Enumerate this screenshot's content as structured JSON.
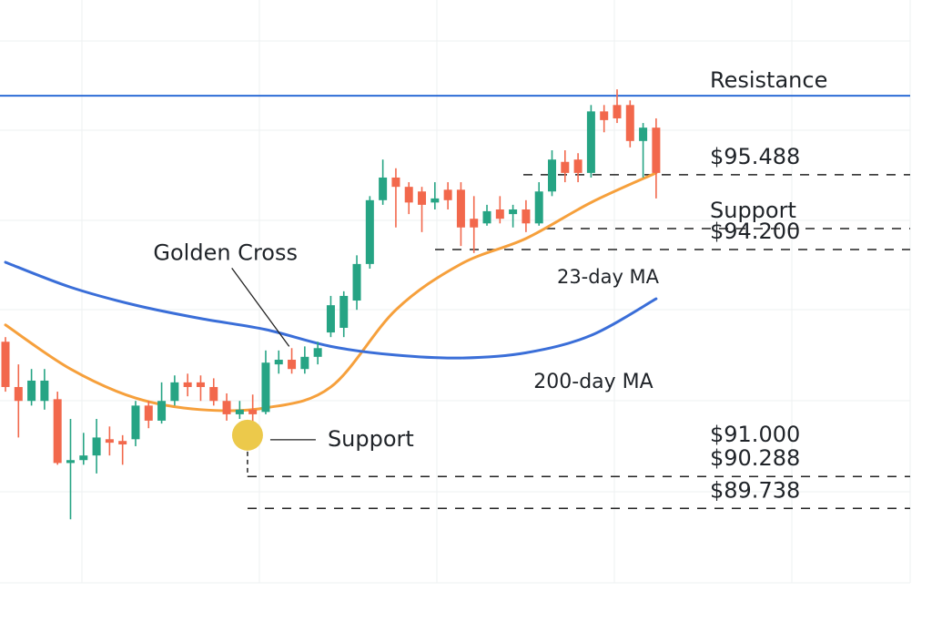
{
  "chart_data": {
    "type": "candlestick",
    "up_color": "#26a484",
    "down_color": "#f2684c",
    "xlim": [
      -0.42,
      71.2
    ],
    "ylim": [
      87.78,
      98.5
    ],
    "open": [
      92.61,
      91.83,
      91.59,
      91.59,
      91.62,
      90.52,
      90.57,
      90.65,
      90.93,
      90.9,
      90.93,
      91.51,
      91.25,
      91.59,
      91.91,
      91.91,
      91.83,
      91.59,
      91.36,
      91.44,
      91.4,
      92.22,
      92.3,
      92.14,
      92.35,
      92.77,
      92.85,
      93.32,
      93.95,
      95.05,
      95.44,
      95.28,
      95.2,
      95.01,
      95.23,
      95.23,
      94.73,
      94.65,
      94.89,
      94.81,
      94.89,
      94.65,
      95.2,
      95.71,
      95.75,
      95.52,
      96.58,
      96.69,
      96.69,
      96.07,
      96.3
    ],
    "high": [
      92.69,
      92.22,
      92.14,
      92.14,
      91.75,
      91.28,
      91.04,
      91.28,
      91.15,
      91.0,
      91.59,
      91.59,
      91.91,
      92.03,
      92.06,
      92.03,
      91.98,
      91.72,
      91.59,
      91.7,
      92.46,
      92.46,
      92.5,
      92.53,
      92.61,
      93.4,
      93.48,
      94.1,
      95.12,
      95.75,
      95.6,
      95.36,
      95.28,
      95.36,
      95.36,
      95.36,
      95.12,
      94.97,
      95.12,
      94.97,
      95.05,
      95.36,
      95.91,
      95.91,
      95.86,
      96.69,
      96.69,
      96.96,
      96.77,
      96.38,
      96.46
    ],
    "low": [
      91.75,
      90.96,
      91.51,
      91.44,
      90.49,
      89.55,
      90.49,
      90.34,
      90.65,
      90.49,
      90.81,
      91.12,
      91.2,
      91.51,
      91.67,
      91.59,
      91.51,
      91.25,
      91.28,
      91.12,
      91.36,
      92.06,
      92.06,
      92.06,
      92.22,
      92.69,
      92.69,
      93.16,
      93.87,
      94.97,
      94.58,
      94.81,
      94.5,
      94.89,
      94.89,
      94.26,
      94.14,
      94.61,
      94.65,
      94.58,
      94.5,
      94.61,
      95.12,
      95.36,
      95.36,
      95.44,
      96.22,
      96.38,
      95.96,
      95.44,
      95.08
    ],
    "close": [
      91.83,
      91.59,
      91.94,
      91.94,
      90.52,
      90.57,
      90.65,
      90.96,
      90.87,
      90.84,
      91.51,
      91.25,
      91.59,
      91.91,
      91.83,
      91.83,
      91.59,
      91.36,
      91.44,
      91.36,
      92.25,
      92.3,
      92.14,
      92.35,
      92.5,
      93.24,
      93.4,
      93.95,
      95.05,
      95.44,
      95.28,
      95.01,
      94.97,
      95.08,
      95.05,
      94.58,
      94.58,
      94.86,
      94.73,
      94.89,
      94.65,
      95.2,
      95.75,
      95.52,
      95.52,
      96.58,
      96.43,
      96.46,
      96.07,
      96.3,
      95.52
    ],
    "series": [
      {
        "name": "23-day MA",
        "color": "#f6a03c",
        "x": [
          0,
          5,
          10,
          15,
          20,
          25,
          30,
          35,
          40,
          45,
          50
        ],
        "values": [
          92.9,
          92.14,
          91.64,
          91.44,
          91.47,
          91.83,
          93.16,
          93.95,
          94.39,
          95.01,
          95.52
        ]
      },
      {
        "name": "200-day MA",
        "color": "#3a6ed8",
        "x": [
          0,
          5,
          10,
          15,
          20,
          25,
          30,
          35,
          40,
          45,
          50
        ],
        "values": [
          93.98,
          93.55,
          93.24,
          93.01,
          92.82,
          92.53,
          92.38,
          92.33,
          92.42,
          92.72,
          93.35
        ]
      }
    ],
    "resistance": {
      "label": "Resistance",
      "value": 96.85,
      "color": "#2c6bd6"
    },
    "levels": [
      {
        "label": "$95.488",
        "value": 95.488,
        "dashed": true
      },
      {
        "label": "Support",
        "value": 94.56,
        "dashed": true
      },
      {
        "label": "$94.200",
        "value": 94.2,
        "dashed": true
      },
      {
        "label": "$91.000",
        "value": 91.0,
        "dashed": false
      },
      {
        "label": "$90.288",
        "value": 90.288,
        "dashed": true
      },
      {
        "label": "$89.738",
        "value": 89.738,
        "dashed": true
      }
    ],
    "golden_cross": {
      "label": "Golden Cross",
      "x": 21.8,
      "value": 92.53
    },
    "support_point": {
      "label": "Support",
      "x": 18.6,
      "value": 91.0,
      "color": "#ecc94b"
    }
  }
}
